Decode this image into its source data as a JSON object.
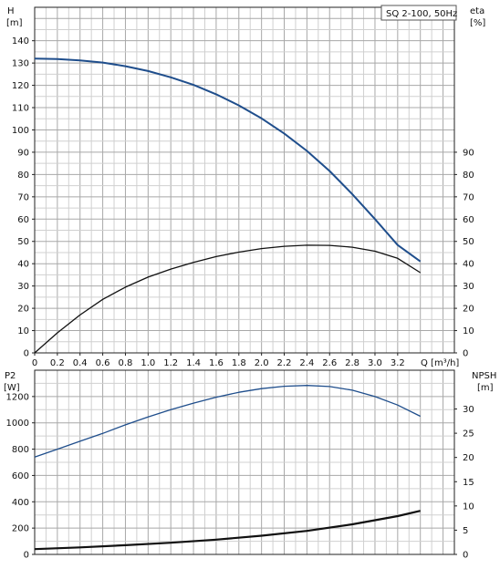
{
  "chart_data": [
    {
      "type": "line",
      "title": "SQ 2-100, 50Hz",
      "xlabel": "Q [m³/h]",
      "xlim": [
        0,
        3.7
      ],
      "x_ticks": [
        "0",
        "0.2",
        "0.4",
        "0.6",
        "0.8",
        "1.0",
        "1.2",
        "1.4",
        "1.6",
        "1.8",
        "2.0",
        "2.2",
        "2.4",
        "2.6",
        "2.8",
        "3.0",
        "3.2"
      ],
      "y_left": {
        "label": "H",
        "unit": "[m]",
        "lim": [
          0,
          155
        ],
        "ticks": [
          "0",
          "10",
          "20",
          "30",
          "40",
          "50",
          "60",
          "70",
          "80",
          "90",
          "100",
          "110",
          "120",
          "130",
          "140"
        ]
      },
      "y_right": {
        "label": "eta",
        "unit": "[%]",
        "lim": [
          0,
          155
        ],
        "ticks": [
          "0",
          "10",
          "20",
          "30",
          "40",
          "50",
          "60",
          "70",
          "80",
          "90"
        ]
      },
      "series": [
        {
          "axis": "left",
          "color": "#1f4e8c",
          "x": [
            0,
            0.2,
            0.4,
            0.6,
            0.8,
            1.0,
            1.2,
            1.4,
            1.6,
            1.8,
            2.0,
            2.2,
            2.4,
            2.6,
            2.8,
            3.0,
            3.2,
            3.4
          ],
          "values": [
            132,
            131.8,
            131.2,
            130.2,
            128.6,
            126.4,
            123.6,
            120.2,
            116.0,
            111.0,
            105.2,
            98.4,
            90.6,
            81.6,
            71.2,
            60.0,
            48.4,
            41.0
          ]
        },
        {
          "axis": "right",
          "color": "#111111",
          "x": [
            0,
            0.2,
            0.4,
            0.6,
            0.8,
            1.0,
            1.2,
            1.4,
            1.6,
            1.8,
            2.0,
            2.2,
            2.4,
            2.6,
            2.8,
            3.0,
            3.2,
            3.4
          ],
          "values": [
            0,
            9,
            17,
            24,
            29.5,
            34,
            37.6,
            40.6,
            43.2,
            45.2,
            46.8,
            47.8,
            48.3,
            48.2,
            47.4,
            45.6,
            42.4,
            36.0
          ]
        }
      ]
    },
    {
      "type": "line",
      "xlim": [
        0,
        3.7
      ],
      "y_left": {
        "label": "P2",
        "unit": "[W]",
        "lim": [
          0,
          1400
        ],
        "ticks": [
          "0",
          "200",
          "400",
          "600",
          "800",
          "1000",
          "1200"
        ]
      },
      "y_right": {
        "label": "NPSH",
        "unit": "[m]",
        "lim": [
          0,
          38
        ],
        "ticks": [
          "0",
          "5",
          "10",
          "15",
          "20",
          "25",
          "30"
        ]
      },
      "series": [
        {
          "axis": "left",
          "color": "#1f4e8c",
          "x": [
            0,
            0.2,
            0.4,
            0.6,
            0.8,
            1.0,
            1.2,
            1.4,
            1.6,
            1.8,
            2.0,
            2.2,
            2.4,
            2.6,
            2.8,
            3.0,
            3.2,
            3.4
          ],
          "values": [
            740,
            800,
            860,
            920,
            985,
            1045,
            1100,
            1150,
            1195,
            1232,
            1260,
            1278,
            1284,
            1276,
            1248,
            1200,
            1135,
            1050
          ]
        },
        {
          "axis": "right",
          "color": "#111111",
          "x": [
            0,
            0.4,
            0.8,
            1.2,
            1.6,
            2.0,
            2.4,
            2.8,
            3.2,
            3.4
          ],
          "values": [
            1.1,
            1.45,
            1.9,
            2.4,
            3.05,
            3.85,
            4.85,
            6.2,
            7.9,
            9.0
          ]
        }
      ]
    }
  ]
}
